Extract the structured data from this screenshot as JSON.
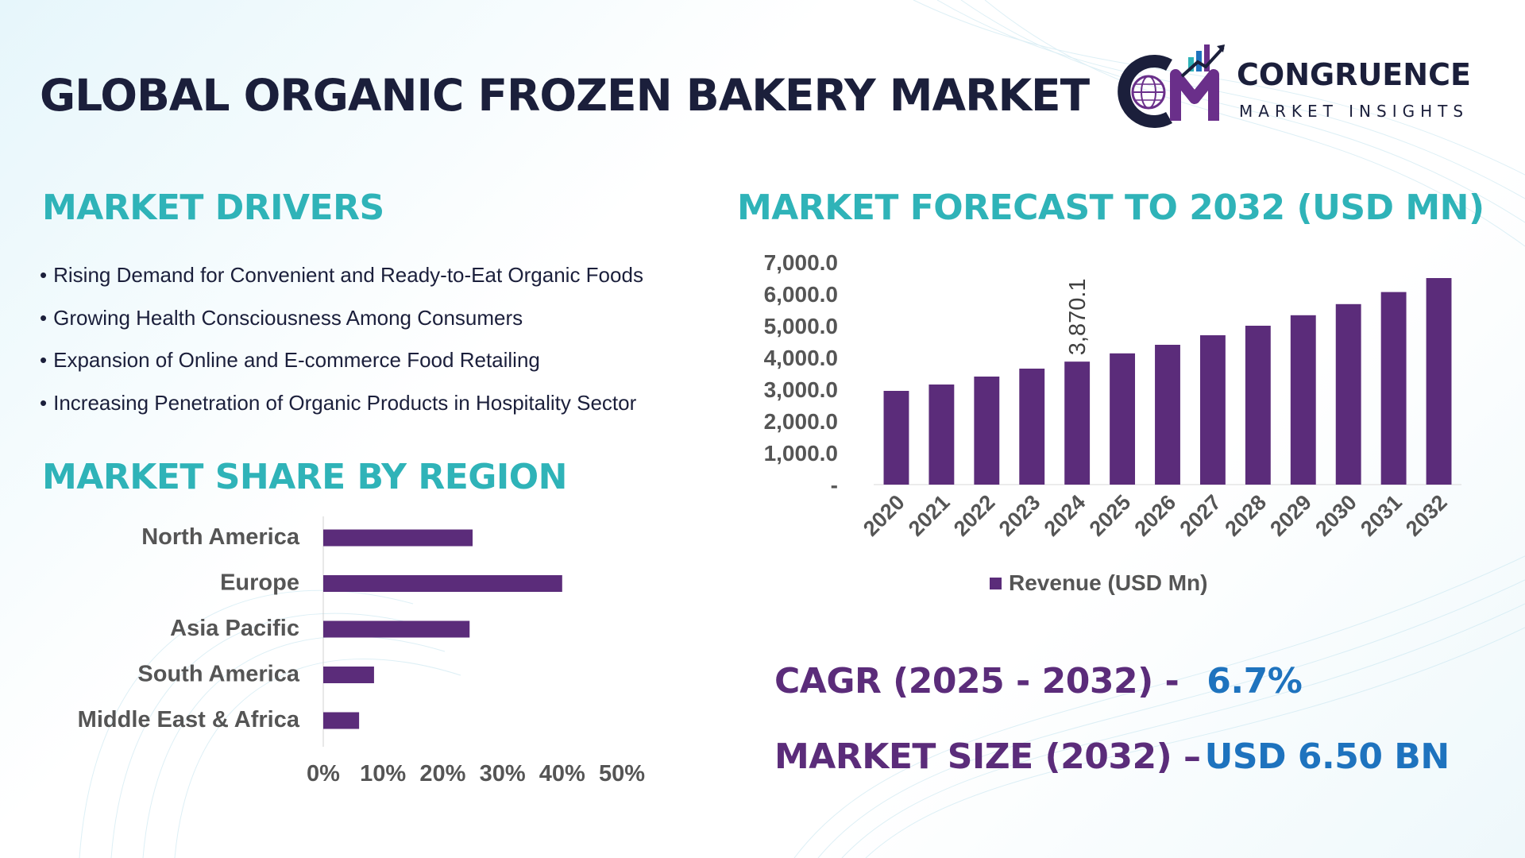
{
  "title": "GLOBAL ORGANIC FROZEN BAKERY MARKET",
  "logo": {
    "brand": "CONGRUENCE",
    "tagline": "MARKET INSIGHTS",
    "icon": "cm-globe-chart-logo"
  },
  "colors": {
    "title": "#1b1f3b",
    "heading": "#2fb3b8",
    "bar": "#5b2c7a",
    "kpi_label": "#5b2c7a",
    "kpi_value": "#1e73be"
  },
  "drivers": {
    "heading": "MARKET DRIVERS",
    "items": [
      "Rising Demand for Convenient and Ready-to-Eat Organic Foods",
      "Growing Health Consciousness Among Consumers",
      "Expansion of Online and E-commerce Food Retailing",
      "Increasing Penetration of Organic Products in Hospitality Sector"
    ]
  },
  "region": {
    "heading": "MARKET SHARE BY REGION"
  },
  "forecast": {
    "heading": "MARKET FORECAST TO 2032 (USD MN)"
  },
  "kpis": {
    "cagr_label": "CAGR (2025 - 2032) -",
    "cagr_value": "6.7%",
    "size_label": "MARKET SIZE (2032) –",
    "size_value": "USD 6.50 BN"
  },
  "chart_data": [
    {
      "type": "bar",
      "orientation": "horizontal",
      "categories": [
        "North America",
        "Europe",
        "Asia Pacific",
        "South America",
        "Middle East & Africa"
      ],
      "values": [
        0.25,
        0.4,
        0.245,
        0.085,
        0.06
      ],
      "xlim": [
        0,
        0.5
      ],
      "x_ticks": [
        "0%",
        "10%",
        "20%",
        "30%",
        "40%",
        "50%"
      ],
      "grid": false,
      "legend": "none"
    },
    {
      "type": "bar",
      "categories": [
        "2020",
        "2021",
        "2022",
        "2023",
        "2024",
        "2025",
        "2026",
        "2027",
        "2028",
        "2029",
        "2030",
        "2031",
        "2032"
      ],
      "series": [
        {
          "name": "Revenue (USD Mn)",
          "values": [
            2950,
            3150,
            3400,
            3650,
            3870.1,
            4130,
            4400,
            4700,
            5000,
            5330,
            5680,
            6060,
            6500
          ]
        }
      ],
      "data_labels": [
        {
          "index": 4,
          "text": "3,870.1"
        }
      ],
      "ylim": [
        0,
        7000
      ],
      "y_ticks": [
        "-",
        "1,000.0",
        "2,000.0",
        "3,000.0",
        "4,000.0",
        "5,000.0",
        "6,000.0",
        "7,000.0"
      ],
      "grid": false,
      "legend": "bottom"
    }
  ]
}
